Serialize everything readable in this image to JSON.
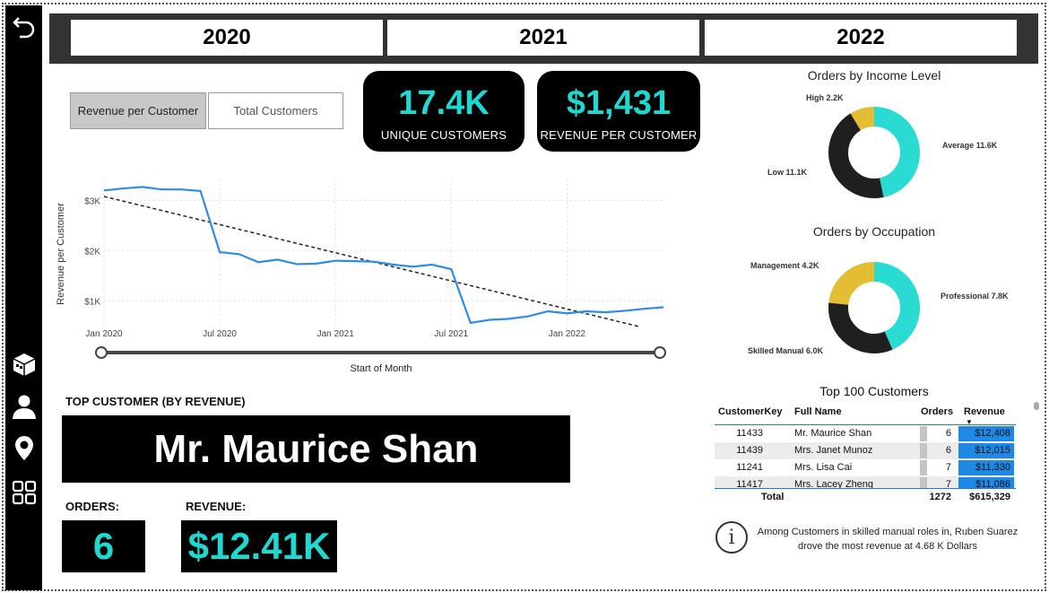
{
  "years": [
    "2020",
    "2021",
    "2022"
  ],
  "toggle": {
    "left_label": "Revenue per Customer",
    "right_label": "Total Customers"
  },
  "kpis": [
    {
      "value": "17.4K",
      "label": "UNIQUE CUSTOMERS"
    },
    {
      "value": "$1,431",
      "label": "REVENUE PER CUSTOMER"
    }
  ],
  "colors": {
    "accent": "#1fd8cf",
    "line": "#2e8be8",
    "donut_teal": "#2adbd3",
    "donut_dark": "#1f1f1f",
    "donut_gold": "#e3bd32",
    "revenue_bar": "#1e88e5"
  },
  "chart_data": {
    "type": "line",
    "xlabel": "Start of Month",
    "ylabel": "Revenue per Customer",
    "x_ticks": [
      "Jan 2020",
      "Jul 2020",
      "Jan 2021",
      "Jul 2021",
      "Jan 2022"
    ],
    "y_ticks": [
      "$1K",
      "$2K",
      "$3K"
    ],
    "ylim": [
      450,
      3420
    ],
    "grid": true,
    "series": [
      {
        "x": [
          "2020-01",
          "2020-02",
          "2020-03",
          "2020-04",
          "2020-05",
          "2020-06",
          "2020-07",
          "2020-08",
          "2020-09",
          "2020-10",
          "2020-11",
          "2020-12",
          "2021-01",
          "2021-02",
          "2021-03",
          "2021-04",
          "2021-05",
          "2021-06",
          "2021-07",
          "2021-08",
          "2021-09",
          "2021-10",
          "2021-11",
          "2021-12",
          "2022-01",
          "2022-02",
          "2022-03",
          "2022-04",
          "2022-05",
          "2022-06"
        ],
        "values": [
          3200,
          3240,
          3270,
          3220,
          3220,
          3190,
          1970,
          1930,
          1770,
          1820,
          1730,
          1740,
          1800,
          1790,
          1780,
          1720,
          1680,
          1720,
          1630,
          560,
          620,
          640,
          690,
          790,
          750,
          790,
          770,
          800,
          840,
          870
        ]
      }
    ],
    "trendline": {
      "start": 3080,
      "end": 480
    }
  },
  "slider_label": "Start of Month",
  "top_customer": {
    "title": "TOP CUSTOMER (BY REVENUE)",
    "name": "Mr. Maurice Shan",
    "orders_label": "ORDERS:",
    "orders_value": "6",
    "revenue_label": "REVENUE:",
    "revenue_value": "$12.41K"
  },
  "donut_income": {
    "title": "Orders by Income Level",
    "slices": [
      {
        "label": "Average",
        "value": 11.6,
        "text": "Average 11.6K"
      },
      {
        "label": "Low",
        "value": 11.1,
        "text": "Low 11.1K"
      },
      {
        "label": "High",
        "value": 2.2,
        "text": "High 2.2K"
      }
    ]
  },
  "donut_occupation": {
    "title": "Orders by Occupation",
    "slices": [
      {
        "label": "Professional",
        "value": 7.8,
        "text": "Professional 7.8K"
      },
      {
        "label": "Skilled Manual",
        "value": 6.0,
        "text": "Skilled Manual 6.0K"
      },
      {
        "label": "Management",
        "value": 4.2,
        "text": "Management 4.2K"
      }
    ]
  },
  "table": {
    "title": "Top 100 Customers",
    "headers": [
      "CustomerKey",
      "Full Name",
      "Orders",
      "Revenue"
    ],
    "rows": [
      [
        "11433",
        "Mr. Maurice Shan",
        "6",
        "$12,408"
      ],
      [
        "11439",
        "Mrs. Janet Munoz",
        "6",
        "$12,015"
      ],
      [
        "11241",
        "Mrs. Lisa Cai",
        "7",
        "$11,330"
      ],
      [
        "11417",
        "Mrs. Lacey Zheng",
        "7",
        "$11,086"
      ]
    ],
    "total": [
      "Total",
      "1272",
      "$615,329"
    ]
  },
  "insight": "Among Customers in skilled manual roles in, Ruben Suarez drove the most revenue at 4.68 K Dollars"
}
